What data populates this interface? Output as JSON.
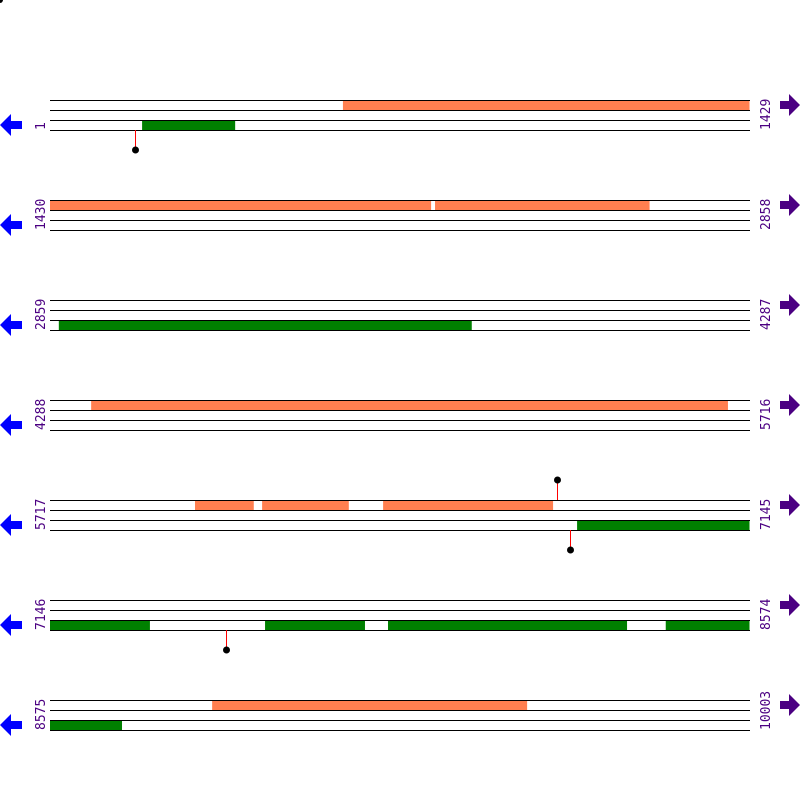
{
  "map": {
    "bp_per_row": 1429,
    "colors": {
      "line": "#000000",
      "forward_feature": "#ff7f50",
      "reverse_feature": "#008000",
      "left_arrow": "#0000ff",
      "right_arrow": "#4b0082",
      "label": "#4b0082",
      "marker_stem": "#ff0000",
      "marker_dot": "#000000"
    },
    "icons": {
      "left": "arrow-left-icon",
      "right": "arrow-right-icon"
    },
    "rows": [
      {
        "start": "1",
        "end": "1429",
        "s": 1,
        "e": 1429,
        "forward": [
          [
            599,
            1429
          ]
        ],
        "reverse": [
          [
            189,
            379
          ]
        ],
        "markers": [
          {
            "pos": 175,
            "side": "bottom"
          }
        ]
      },
      {
        "start": "1430",
        "end": "2858",
        "s": 1430,
        "e": 2858,
        "forward": [
          [
            1430,
            2208
          ],
          [
            2216,
            2654
          ]
        ],
        "reverse": [],
        "markers": []
      },
      {
        "start": "2859",
        "end": "4287",
        "s": 2859,
        "e": 4287,
        "forward": [],
        "reverse": [
          [
            2877,
            3720
          ]
        ],
        "markers": []
      },
      {
        "start": "4288",
        "end": "5716",
        "s": 4288,
        "e": 5716,
        "forward": [
          [
            4372,
            5672
          ]
        ],
        "reverse": [],
        "markers": []
      },
      {
        "start": "5717",
        "end": "7145",
        "s": 5717,
        "e": 7145,
        "forward": [
          [
            6013,
            6133
          ],
          [
            6150,
            6327
          ],
          [
            6397,
            6744
          ]
        ],
        "reverse": [
          [
            6793,
            7145
          ]
        ],
        "markers": [
          {
            "pos": 6752,
            "side": "top"
          },
          {
            "pos": 6778,
            "side": "bottom"
          }
        ]
      },
      {
        "start": "7146",
        "end": "8574",
        "s": 7146,
        "e": 8574,
        "forward": [],
        "reverse": [
          [
            7146,
            7350
          ],
          [
            7585,
            7789
          ],
          [
            7836,
            8324
          ],
          [
            8403,
            8574
          ]
        ],
        "markers": [
          {
            "pos": 7505,
            "side": "bottom"
          }
        ]
      },
      {
        "start": "8575",
        "end": "10003",
        "s": 8575,
        "e": 10003,
        "forward": [
          [
            8906,
            9549
          ]
        ],
        "reverse": [
          [
            8575,
            8722
          ]
        ],
        "markers": []
      }
    ]
  }
}
